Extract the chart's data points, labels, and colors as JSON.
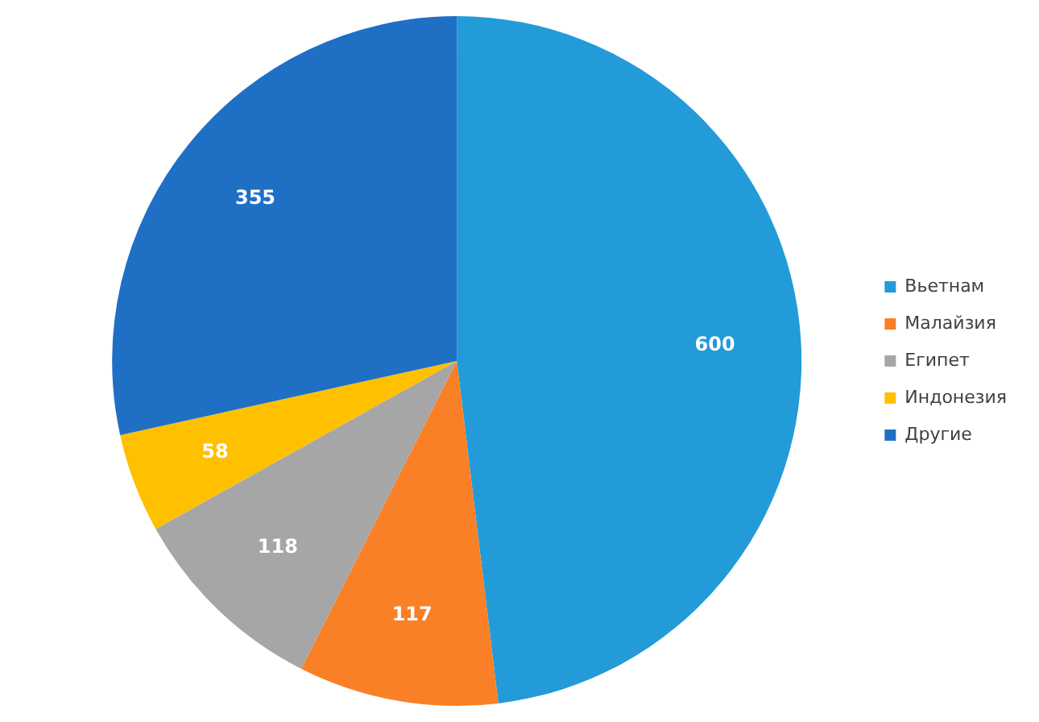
{
  "chart_data": {
    "type": "pie",
    "categories": [
      "Вьетнам",
      "Малайзия",
      "Египет",
      "Индонезия",
      "Другие"
    ],
    "values": [
      600,
      117,
      118,
      58,
      355
    ],
    "colors": [
      "#229bd8",
      "#f98026",
      "#a6a6a6",
      "#ffc000",
      "#1f6fc5"
    ],
    "data_labels": true,
    "legend": "right"
  }
}
